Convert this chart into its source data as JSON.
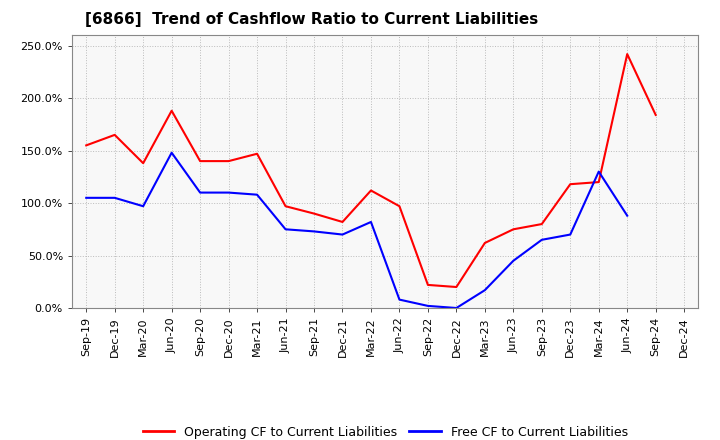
{
  "title": "[6866]  Trend of Cashflow Ratio to Current Liabilities",
  "x_labels": [
    "Sep-19",
    "Dec-19",
    "Mar-20",
    "Jun-20",
    "Sep-20",
    "Dec-20",
    "Mar-21",
    "Jun-21",
    "Sep-21",
    "Dec-21",
    "Mar-22",
    "Jun-22",
    "Sep-22",
    "Dec-22",
    "Mar-23",
    "Jun-23",
    "Sep-23",
    "Dec-23",
    "Mar-24",
    "Jun-24",
    "Sep-24",
    "Dec-24"
  ],
  "operating_cf": [
    1.55,
    1.65,
    1.38,
    1.88,
    1.4,
    1.4,
    1.47,
    0.97,
    0.9,
    0.82,
    1.12,
    0.97,
    0.22,
    0.2,
    0.62,
    0.75,
    0.8,
    1.18,
    1.2,
    2.42,
    1.84,
    null
  ],
  "free_cf": [
    1.05,
    1.05,
    0.97,
    1.48,
    1.1,
    1.1,
    1.08,
    0.75,
    0.73,
    0.7,
    0.82,
    0.08,
    0.02,
    0.0,
    0.17,
    0.45,
    0.65,
    0.7,
    1.3,
    0.88,
    null,
    null
  ],
  "operating_cf_color": "#FF0000",
  "free_cf_color": "#0000FF",
  "background_color": "#FFFFFF",
  "grid_color": "#BBBBBB",
  "ylim": [
    0.0,
    2.6
  ],
  "yticks": [
    0.0,
    0.5,
    1.0,
    1.5,
    2.0,
    2.5
  ],
  "ytick_labels": [
    "0.0%",
    "50.0%",
    "100.0%",
    "150.0%",
    "200.0%",
    "250.0%"
  ],
  "legend_labels": [
    "Operating CF to Current Liabilities",
    "Free CF to Current Liabilities"
  ],
  "title_fontsize": 11,
  "tick_fontsize": 8,
  "legend_fontsize": 9
}
